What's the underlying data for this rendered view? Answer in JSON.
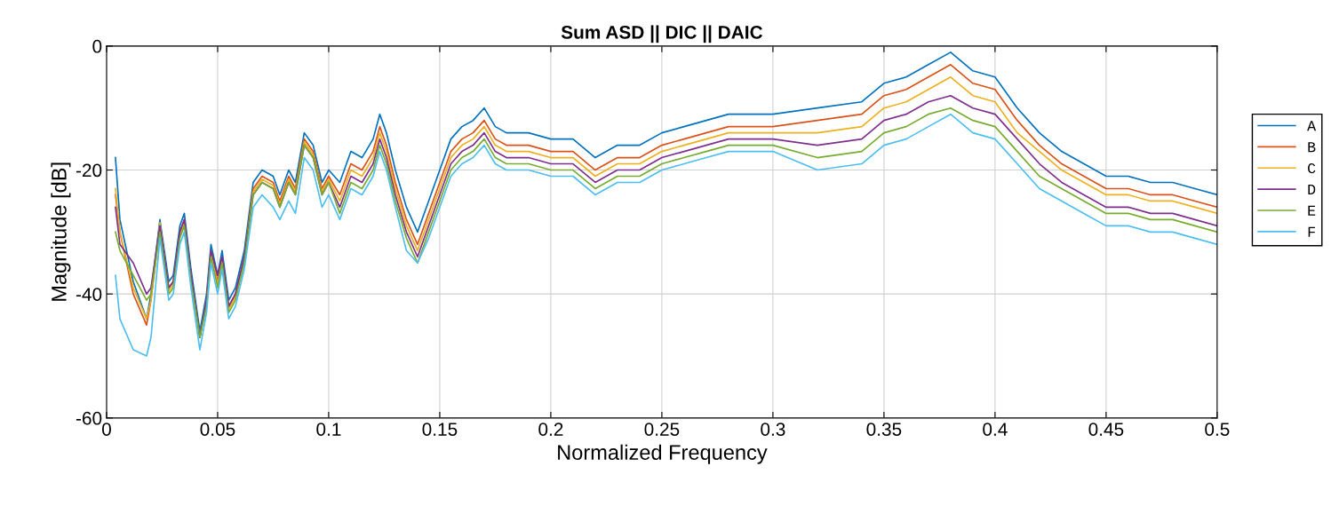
{
  "chart_data": {
    "type": "line",
    "title": "Sum ASD || DIC || DAIC",
    "xlabel": "Normalized Frequency",
    "ylabel": "Magnitude [dB]",
    "xlim": [
      0,
      0.5
    ],
    "xticks": [
      0,
      0.05,
      0.1,
      0.15,
      0.2,
      0.25,
      0.3,
      0.35,
      0.4,
      0.45,
      0.5
    ],
    "ylim": [
      -60,
      0
    ],
    "yticks": [
      -60,
      -40,
      -20,
      0
    ],
    "grid": true,
    "legend": "right",
    "x": [
      0.004,
      0.006,
      0.012,
      0.018,
      0.02,
      0.024,
      0.028,
      0.03,
      0.033,
      0.035,
      0.038,
      0.042,
      0.045,
      0.047,
      0.05,
      0.052,
      0.055,
      0.058,
      0.062,
      0.066,
      0.07,
      0.075,
      0.078,
      0.082,
      0.085,
      0.089,
      0.093,
      0.097,
      0.1,
      0.105,
      0.11,
      0.115,
      0.12,
      0.123,
      0.126,
      0.13,
      0.135,
      0.14,
      0.145,
      0.15,
      0.155,
      0.16,
      0.165,
      0.17,
      0.175,
      0.18,
      0.19,
      0.2,
      0.21,
      0.22,
      0.23,
      0.24,
      0.25,
      0.26,
      0.27,
      0.28,
      0.3,
      0.32,
      0.34,
      0.35,
      0.36,
      0.37,
      0.38,
      0.39,
      0.4,
      0.41,
      0.42,
      0.43,
      0.44,
      0.45,
      0.46,
      0.47,
      0.48,
      0.49,
      0.5
    ],
    "series": [
      {
        "name": "A",
        "color": "#0072bd",
        "values": [
          -18,
          -28,
          -38,
          -44,
          -40,
          -28,
          -38,
          -37,
          -29,
          -27,
          -36,
          -46,
          -40,
          -32,
          -37,
          -33,
          -41,
          -39,
          -33,
          -22,
          -20,
          -21,
          -24,
          -20,
          -22,
          -14,
          -16,
          -22,
          -20,
          -22,
          -17,
          -18,
          -15,
          -11,
          -14,
          -20,
          -26,
          -30,
          -25,
          -20,
          -15,
          -13,
          -12,
          -10,
          -13,
          -14,
          -14,
          -15,
          -15,
          -18,
          -16,
          -16,
          -14,
          -13,
          -12,
          -11,
          -11,
          -10,
          -9,
          -6,
          -5,
          -3,
          -1,
          -4,
          -5,
          -10,
          -14,
          -17,
          -19,
          -21,
          -21,
          -22,
          -22,
          -23,
          -24
        ]
      },
      {
        "name": "B",
        "color": "#d95319",
        "values": [
          -24,
          -30,
          -40,
          -45,
          -41,
          -29,
          -39,
          -38,
          -30,
          -28,
          -37,
          -47,
          -41,
          -33,
          -38,
          -34,
          -42,
          -40,
          -34,
          -23,
          -21,
          -22,
          -25,
          -21,
          -23,
          -15,
          -17,
          -23,
          -21,
          -24,
          -19,
          -20,
          -17,
          -13,
          -16,
          -22,
          -28,
          -32,
          -27,
          -22,
          -17,
          -15,
          -14,
          -12,
          -15,
          -16,
          -16,
          -17,
          -17,
          -20,
          -18,
          -18,
          -16,
          -15,
          -14,
          -13,
          -13,
          -12,
          -11,
          -8,
          -7,
          -5,
          -3,
          -6,
          -7,
          -12,
          -16,
          -19,
          -21,
          -23,
          -23,
          -24,
          -24,
          -25,
          -26
        ]
      },
      {
        "name": "C",
        "color": "#edb120",
        "values": [
          -23,
          -30,
          -39,
          -44,
          -41,
          -28.5,
          -39.5,
          -38.5,
          -30.5,
          -28.5,
          -37.5,
          -47,
          -41.5,
          -33.5,
          -38.5,
          -34.5,
          -42.5,
          -40.5,
          -34.5,
          -23.5,
          -21.5,
          -22.5,
          -25.5,
          -21.5,
          -23.5,
          -15.5,
          -17.5,
          -23.5,
          -21.5,
          -25,
          -20,
          -21,
          -18,
          -14,
          -17,
          -23,
          -29,
          -33,
          -28,
          -23,
          -18,
          -16,
          -15,
          -13,
          -16,
          -17,
          -17,
          -18,
          -18,
          -21,
          -19,
          -19,
          -17,
          -16,
          -15,
          -14,
          -14,
          -14,
          -13,
          -10,
          -9,
          -7,
          -5,
          -8,
          -9,
          -14,
          -17,
          -20,
          -22,
          -24,
          -24,
          -25,
          -25,
          -26,
          -27
        ]
      },
      {
        "name": "D",
        "color": "#7e2f8e",
        "values": [
          -26,
          -32,
          -35,
          -40,
          -39,
          -29,
          -39,
          -38,
          -30,
          -28,
          -37,
          -47,
          -41,
          -33,
          -37,
          -34,
          -42,
          -40,
          -34,
          -24,
          -22,
          -23,
          -26,
          -22,
          -24,
          -16,
          -18,
          -24,
          -22,
          -26,
          -21,
          -22,
          -19,
          -15,
          -18,
          -24,
          -30,
          -34,
          -29,
          -24,
          -19,
          -17,
          -16,
          -14,
          -17,
          -18,
          -18,
          -19,
          -19,
          -22,
          -20,
          -20,
          -18,
          -17,
          -16,
          -15,
          -15,
          -16,
          -15,
          -12,
          -11,
          -9,
          -8,
          -10,
          -11,
          -15,
          -19,
          -22,
          -24,
          -26,
          -26,
          -27,
          -27,
          -28,
          -29
        ]
      },
      {
        "name": "E",
        "color": "#77ac30",
        "values": [
          -30,
          -33,
          -37,
          -41,
          -40,
          -30,
          -40,
          -39,
          -31,
          -29,
          -38,
          -47,
          -42,
          -34,
          -39,
          -35,
          -43,
          -41,
          -35,
          -24,
          -22,
          -23,
          -26,
          -22,
          -24,
          -16,
          -18,
          -24,
          -22,
          -27,
          -22,
          -23,
          -20,
          -16,
          -19,
          -25,
          -31,
          -35,
          -30,
          -25,
          -20,
          -18,
          -17,
          -15,
          -18,
          -19,
          -19,
          -20,
          -20,
          -23,
          -21,
          -21,
          -19,
          -18,
          -17,
          -16,
          -16,
          -18,
          -17,
          -14,
          -13,
          -11,
          -10,
          -12,
          -13,
          -17,
          -21,
          -23,
          -25,
          -27,
          -27,
          -28,
          -28,
          -29,
          -30
        ]
      },
      {
        "name": "F",
        "color": "#4dbeee",
        "values": [
          -37,
          -44,
          -49,
          -50,
          -47,
          -31,
          -41,
          -40,
          -32,
          -30,
          -39,
          -49,
          -43,
          -35,
          -40,
          -36,
          -44,
          -42,
          -36,
          -26,
          -24,
          -26,
          -28,
          -25,
          -27,
          -18,
          -20,
          -26,
          -24,
          -28,
          -23,
          -24,
          -21,
          -17,
          -20,
          -26,
          -33,
          -35,
          -31,
          -26,
          -21,
          -19,
          -18,
          -16,
          -19,
          -20,
          -20,
          -21,
          -21,
          -24,
          -22,
          -22,
          -20,
          -19,
          -18,
          -17,
          -17,
          -20,
          -19,
          -16,
          -15,
          -13,
          -11,
          -14,
          -15,
          -19,
          -23,
          -25,
          -27,
          -29,
          -29,
          -30,
          -30,
          -31,
          -32
        ]
      }
    ]
  }
}
